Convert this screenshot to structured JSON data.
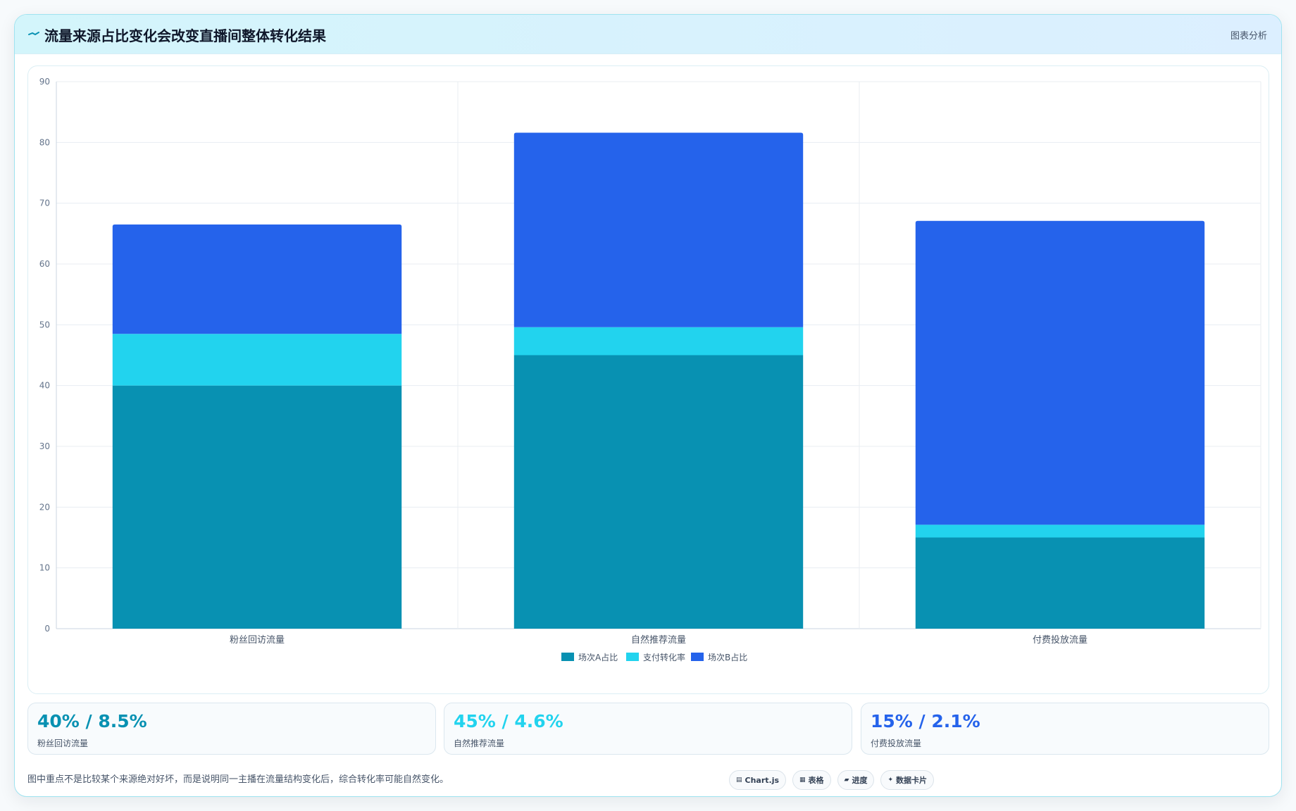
{
  "header": {
    "title": "流量来源占比变化会改变直播间整体转化结果",
    "action_label": "图表分析"
  },
  "chart_data": {
    "type": "bar",
    "stacked": true,
    "categories": [
      "粉丝回访流量",
      "自然推荐流量",
      "付费投放流量"
    ],
    "series": [
      {
        "name": "场次A占比",
        "color": "#0891b2",
        "values": [
          40,
          45,
          15
        ]
      },
      {
        "name": "支付转化率",
        "color": "#22d3ee",
        "values": [
          8.5,
          4.6,
          2.1
        ]
      },
      {
        "name": "场次B占比",
        "color": "#2563eb",
        "values": [
          18,
          32,
          50
        ]
      }
    ],
    "ylim": [
      0,
      90
    ],
    "yticks": [
      0,
      10,
      20,
      30,
      40,
      50,
      60,
      70,
      80,
      90
    ],
    "grid": true,
    "legend_position": "bottom"
  },
  "stats": [
    {
      "value": "40% / 8.5%",
      "label": "粉丝回访流量",
      "color": "#0891b2"
    },
    {
      "value": "45% / 4.6%",
      "label": "自然推荐流量",
      "color": "#22d3ee"
    },
    {
      "value": "15% / 2.1%",
      "label": "付费投放流量",
      "color": "#2563eb"
    }
  ],
  "footnote": "图中重点不是比较某个来源绝对好坏，而是说明同一主播在流量结构变化后，综合转化率可能自然变化。",
  "chips": [
    {
      "icon": "▤",
      "label": "Chart.js",
      "icon_name": "chart-icon"
    },
    {
      "icon": "▦",
      "label": "表格",
      "icon_name": "table-icon"
    },
    {
      "icon": "▰",
      "label": "进度",
      "icon_name": "progress-icon"
    },
    {
      "icon": "✦",
      "label": "数据卡片",
      "icon_name": "sparkle-icon"
    }
  ]
}
